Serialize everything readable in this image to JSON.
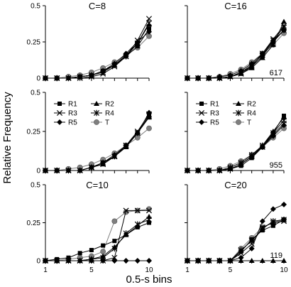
{
  "figure": {
    "ylabel": "Relative Frequency",
    "xlabel": "0.5-s bins"
  },
  "chart_data": {
    "type": "line",
    "layout": "3x2 grid",
    "shared_x": [
      1,
      2,
      3,
      4,
      5,
      6,
      7,
      8,
      9,
      10
    ],
    "x_ticks": [
      "1",
      "5",
      "10"
    ],
    "series_names": [
      "R1",
      "R2",
      "R3",
      "R4",
      "R5",
      "T"
    ],
    "series_markers": {
      "R1": "square",
      "R2": "triangle",
      "R3": "x",
      "R4": "star",
      "R5": "diamond",
      "T": "circle"
    },
    "series_colors": {
      "R1": "#000000",
      "R2": "#000000",
      "R3": "#000000",
      "R4": "#000000",
      "R5": "#000000",
      "T": "#7f7f7f"
    },
    "panels": [
      {
        "id": "top-left",
        "title": "C=8",
        "annotation": "",
        "legend": false,
        "ylim": [
          0,
          0.5
        ],
        "yticks": [
          "0",
          "0.25",
          "0.5"
        ],
        "series": [
          {
            "name": "R1",
            "values": [
              0,
              0,
              0,
              0.01,
              0.02,
              0.05,
              0.09,
              0.15,
              0.22,
              0.34
            ]
          },
          {
            "name": "R2",
            "values": [
              0,
              0,
              0,
              0.01,
              0.02,
              0.05,
              0.09,
              0.16,
              0.24,
              0.37
            ]
          },
          {
            "name": "R3",
            "values": [
              0,
              0,
              0,
              0,
              0.01,
              0.03,
              0.08,
              0.15,
              0.26,
              0.41
            ]
          },
          {
            "name": "R4",
            "values": [
              0,
              0,
              0,
              0.01,
              0.02,
              0.04,
              0.09,
              0.15,
              0.24,
              0.38
            ]
          },
          {
            "name": "R5",
            "values": [
              0,
              0,
              0,
              0.01,
              0.02,
              0.05,
              0.1,
              0.17,
              0.25,
              0.32
            ]
          },
          {
            "name": "T",
            "values": [
              0,
              0,
              0.01,
              0.02,
              0.04,
              0.07,
              0.11,
              0.16,
              0.21,
              0.29
            ]
          }
        ]
      },
      {
        "id": "top-right",
        "title": "C=16",
        "annotation": "617",
        "legend": false,
        "ylim": [
          0,
          0.5
        ],
        "yticks": [],
        "series": [
          {
            "name": "R1",
            "values": [
              0,
              0,
              0,
              0,
              0.01,
              0.04,
              0.08,
              0.15,
              0.25,
              0.33
            ]
          },
          {
            "name": "R2",
            "values": [
              0,
              0,
              0,
              0,
              0.01,
              0.03,
              0.07,
              0.14,
              0.23,
              0.39
            ]
          },
          {
            "name": "R3",
            "values": [
              0,
              0,
              0,
              0,
              0.01,
              0.03,
              0.08,
              0.17,
              0.27,
              0.36
            ]
          },
          {
            "name": "R4",
            "values": [
              0,
              0,
              0,
              0,
              0.01,
              0.04,
              0.09,
              0.16,
              0.26,
              0.35
            ]
          },
          {
            "name": "R5",
            "values": [
              0,
              0,
              0,
              0.01,
              0.02,
              0.05,
              0.1,
              0.17,
              0.26,
              0.33
            ]
          },
          {
            "name": "T",
            "values": [
              0,
              0,
              0,
              0.01,
              0.03,
              0.06,
              0.11,
              0.17,
              0.23,
              0.31
            ]
          }
        ]
      },
      {
        "id": "middle-left",
        "title": "",
        "annotation": "",
        "legend": true,
        "ylim": [
          0,
          0.5
        ],
        "yticks": [
          "0",
          "0.25",
          "0.5"
        ],
        "series": [
          {
            "name": "R1",
            "values": [
              0,
              0,
              0,
              0,
              0.02,
              0.05,
              0.09,
              0.15,
              0.24,
              0.35
            ]
          },
          {
            "name": "R2",
            "values": [
              0,
              0,
              0,
              0,
              0.02,
              0.04,
              0.09,
              0.15,
              0.24,
              0.34
            ]
          },
          {
            "name": "R3",
            "values": [
              0,
              0,
              0,
              0,
              0.02,
              0.04,
              0.09,
              0.16,
              0.25,
              0.36
            ]
          },
          {
            "name": "R4",
            "values": [
              0,
              0,
              0,
              0,
              0.02,
              0.05,
              0.09,
              0.16,
              0.24,
              0.35
            ]
          },
          {
            "name": "R5",
            "values": [
              0,
              0,
              0,
              0,
              0.02,
              0.05,
              0.1,
              0.16,
              0.24,
              0.37
            ]
          },
          {
            "name": "T",
            "values": [
              0,
              0,
              0.01,
              0.02,
              0.04,
              0.07,
              0.11,
              0.16,
              0.21,
              0.27
            ]
          }
        ]
      },
      {
        "id": "middle-right",
        "title": "",
        "annotation": "955",
        "legend": true,
        "ylim": [
          0,
          0.5
        ],
        "yticks": [],
        "series": [
          {
            "name": "R1",
            "values": [
              0,
              0,
              0,
              0,
              0.01,
              0.03,
              0.08,
              0.15,
              0.24,
              0.35
            ]
          },
          {
            "name": "R2",
            "values": [
              0,
              0,
              0,
              0,
              0.01,
              0.04,
              0.09,
              0.16,
              0.25,
              0.34
            ]
          },
          {
            "name": "R3",
            "values": [
              0,
              0,
              0,
              0,
              0.01,
              0.04,
              0.09,
              0.15,
              0.23,
              0.3
            ]
          },
          {
            "name": "R4",
            "values": [
              0,
              0,
              0,
              0,
              0.02,
              0.05,
              0.1,
              0.16,
              0.24,
              0.32
            ]
          },
          {
            "name": "R5",
            "values": [
              0,
              0,
              0,
              0,
              0.01,
              0.04,
              0.09,
              0.15,
              0.22,
              0.29
            ]
          },
          {
            "name": "T",
            "values": [
              0,
              0,
              0,
              0.01,
              0.03,
              0.06,
              0.1,
              0.15,
              0.21,
              0.27
            ]
          }
        ]
      },
      {
        "id": "bottom-left",
        "title": "C=10",
        "annotation": "",
        "legend": false,
        "ylim": [
          0,
          0.5
        ],
        "yticks": [
          "0",
          "0.25",
          "0.5"
        ],
        "series": [
          {
            "name": "R1",
            "values": [
              0,
              0.01,
              0.02,
              0.05,
              0.07,
              0.1,
              0.13,
              0.17,
              0.22,
              0.25
            ]
          },
          {
            "name": "R2",
            "values": [
              0,
              0,
              0,
              0,
              0.01,
              0.03,
              0.09,
              0.17,
              0.23,
              0.29
            ]
          },
          {
            "name": "R3",
            "values": [
              0,
              0,
              0,
              0,
              0,
              0,
              0.02,
              0.33,
              0.33,
              0.33
            ]
          },
          {
            "name": "R4",
            "values": [
              0,
              0,
              0,
              0,
              0.01,
              0.02,
              0.08,
              0.18,
              0.24,
              0.27
            ]
          },
          {
            "name": "R5",
            "values": [
              0,
              0,
              0,
              0,
              0,
              0,
              0,
              0,
              0,
              0
            ]
          },
          {
            "name": "T",
            "values": [
              0,
              0,
              0.01,
              0.02,
              0.03,
              0.06,
              0.26,
              0.32,
              0.33,
              0.34
            ]
          }
        ]
      },
      {
        "id": "bottom-right",
        "title": "C=20",
        "annotation": "119",
        "legend": false,
        "ylim": [
          0,
          0.5
        ],
        "yticks": [],
        "series": [
          {
            "name": "R1",
            "values": [
              0,
              0,
              0,
              0,
              0,
              0.06,
              0.14,
              0.2,
              0.23,
              0.27
            ]
          },
          {
            "name": "R2",
            "values": [
              0,
              0,
              0,
              0,
              0,
              0,
              0,
              0,
              0,
              0
            ]
          },
          {
            "name": "R3",
            "values": [
              0,
              0,
              0,
              0,
              0,
              0.05,
              0.11,
              0.22,
              0.25,
              0.26
            ]
          },
          {
            "name": "R4",
            "values": [
              0,
              0,
              0,
              0,
              0,
              0.07,
              0.13,
              0.21,
              0.26,
              0.27
            ]
          },
          {
            "name": "R5",
            "values": [
              0,
              0,
              0,
              0,
              0,
              0.02,
              0.08,
              0.26,
              0.34,
              0.37
            ]
          },
          {
            "name": "T",
            "values": [
              0,
              0,
              0,
              0,
              0,
              0.08,
              0.15,
              0.22,
              0.25,
              0.27
            ]
          }
        ]
      }
    ]
  }
}
